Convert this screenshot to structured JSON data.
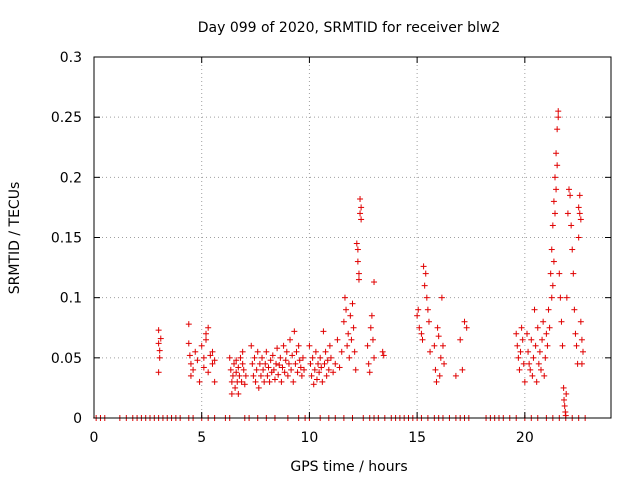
{
  "chart_data": {
    "type": "scatter",
    "title": "Day 099 of 2020, SRMTID for receiver blw2",
    "xlabel": "GPS time / hours",
    "ylabel": "SRMTID / TECUs",
    "xlim": [
      0,
      24
    ],
    "ylim": [
      0,
      0.3
    ],
    "xticks": [
      0,
      5,
      10,
      15,
      20
    ],
    "xtick_labels": [
      "0",
      "5",
      "10",
      "15",
      "20"
    ],
    "yticks": [
      0,
      0.05,
      0.1,
      0.15,
      0.2,
      0.25,
      0.3
    ],
    "ytick_labels": [
      "0",
      "0.05",
      "0.1",
      "0.15",
      "0.2",
      "0.25",
      "0.3"
    ],
    "grid": true,
    "marker": "+",
    "color": "#e00000",
    "zero_points_x": [
      0.1,
      0.3,
      0.5,
      1.2,
      1.5,
      1.8,
      2.0,
      2.2,
      2.4,
      2.6,
      2.8,
      3.0,
      3.2,
      3.4,
      3.6,
      3.8,
      4.0,
      4.4,
      4.6,
      5.0,
      5.3,
      5.6,
      6.1,
      6.3,
      7.0,
      7.2,
      7.6,
      8.0,
      8.4,
      9.0,
      9.5,
      9.8,
      10.0,
      10.5,
      10.9,
      11.2,
      11.6,
      12.0,
      12.5,
      12.8,
      13.0,
      13.2,
      13.5,
      13.8,
      14.0,
      14.2,
      14.4,
      14.6,
      14.8,
      15.0,
      15.2,
      15.5,
      15.8,
      16.0,
      16.2,
      16.5,
      16.8,
      17.0,
      17.2,
      17.4,
      18.2,
      18.4,
      18.6,
      18.8,
      19.0,
      19.3,
      19.6,
      20.0,
      20.3,
      20.6,
      21.0,
      21.3,
      21.6,
      21.9,
      22.2,
      22.5,
      22.8
    ],
    "series": [
      {
        "name": "blw2",
        "points": [
          [
            3.0,
            0.073
          ],
          [
            3.0,
            0.062
          ],
          [
            3.05,
            0.05
          ],
          [
            3.0,
            0.038
          ],
          [
            3.1,
            0.066
          ],
          [
            3.05,
            0.056
          ],
          [
            4.4,
            0.078
          ],
          [
            4.4,
            0.062
          ],
          [
            4.45,
            0.052
          ],
          [
            4.5,
            0.045
          ],
          [
            4.5,
            0.035
          ],
          [
            4.6,
            0.04
          ],
          [
            4.7,
            0.055
          ],
          [
            4.8,
            0.048
          ],
          [
            4.9,
            0.03
          ],
          [
            5.0,
            0.06
          ],
          [
            5.1,
            0.042
          ],
          [
            5.1,
            0.05
          ],
          [
            5.2,
            0.065
          ],
          [
            5.2,
            0.07
          ],
          [
            5.3,
            0.075
          ],
          [
            5.3,
            0.038
          ],
          [
            5.4,
            0.052
          ],
          [
            5.5,
            0.055
          ],
          [
            5.5,
            0.045
          ],
          [
            5.6,
            0.03
          ],
          [
            5.6,
            0.048
          ],
          [
            6.3,
            0.05
          ],
          [
            6.35,
            0.04
          ],
          [
            6.4,
            0.03
          ],
          [
            6.4,
            0.02
          ],
          [
            6.45,
            0.035
          ],
          [
            6.5,
            0.045
          ],
          [
            6.55,
            0.025
          ],
          [
            6.6,
            0.038
          ],
          [
            6.6,
            0.048
          ],
          [
            6.65,
            0.03
          ],
          [
            6.7,
            0.042
          ],
          [
            6.7,
            0.02
          ],
          [
            6.75,
            0.035
          ],
          [
            6.8,
            0.05
          ],
          [
            6.85,
            0.03
          ],
          [
            6.9,
            0.045
          ],
          [
            6.9,
            0.055
          ],
          [
            6.95,
            0.04
          ],
          [
            7.0,
            0.028
          ],
          [
            7.05,
            0.035
          ],
          [
            7.3,
            0.06
          ],
          [
            7.35,
            0.045
          ],
          [
            7.4,
            0.035
          ],
          [
            7.45,
            0.05
          ],
          [
            7.5,
            0.03
          ],
          [
            7.55,
            0.04
          ],
          [
            7.6,
            0.055
          ],
          [
            7.65,
            0.025
          ],
          [
            7.7,
            0.045
          ],
          [
            7.75,
            0.035
          ],
          [
            7.8,
            0.05
          ],
          [
            7.85,
            0.04
          ],
          [
            7.9,
            0.03
          ],
          [
            7.95,
            0.045
          ],
          [
            8.0,
            0.055
          ],
          [
            8.05,
            0.035
          ],
          [
            8.1,
            0.042
          ],
          [
            8.15,
            0.03
          ],
          [
            8.2,
            0.048
          ],
          [
            8.25,
            0.038
          ],
          [
            8.3,
            0.052
          ],
          [
            8.35,
            0.04
          ],
          [
            8.4,
            0.032
          ],
          [
            8.45,
            0.045
          ],
          [
            8.5,
            0.058
          ],
          [
            8.55,
            0.036
          ],
          [
            8.6,
            0.044
          ],
          [
            8.65,
            0.05
          ],
          [
            8.7,
            0.03
          ],
          [
            8.75,
            0.042
          ],
          [
            8.8,
            0.06
          ],
          [
            8.85,
            0.038
          ],
          [
            8.9,
            0.048
          ],
          [
            8.95,
            0.055
          ],
          [
            9.0,
            0.035
          ],
          [
            9.05,
            0.045
          ],
          [
            9.1,
            0.065
          ],
          [
            9.15,
            0.04
          ],
          [
            9.2,
            0.052
          ],
          [
            9.25,
            0.03
          ],
          [
            9.3,
            0.072
          ],
          [
            9.35,
            0.045
          ],
          [
            9.4,
            0.055
          ],
          [
            9.45,
            0.038
          ],
          [
            9.5,
            0.06
          ],
          [
            9.55,
            0.048
          ],
          [
            9.6,
            0.042
          ],
          [
            9.65,
            0.035
          ],
          [
            9.7,
            0.05
          ],
          [
            9.75,
            0.04
          ],
          [
            10.0,
            0.06
          ],
          [
            10.05,
            0.045
          ],
          [
            10.1,
            0.035
          ],
          [
            10.15,
            0.05
          ],
          [
            10.2,
            0.028
          ],
          [
            10.25,
            0.04
          ],
          [
            10.3,
            0.055
          ],
          [
            10.35,
            0.032
          ],
          [
            10.4,
            0.045
          ],
          [
            10.45,
            0.038
          ],
          [
            10.5,
            0.05
          ],
          [
            10.55,
            0.042
          ],
          [
            10.6,
            0.03
          ],
          [
            10.65,
            0.072
          ],
          [
            10.7,
            0.045
          ],
          [
            10.75,
            0.055
          ],
          [
            10.8,
            0.035
          ],
          [
            10.85,
            0.048
          ],
          [
            10.9,
            0.04
          ],
          [
            10.95,
            0.06
          ],
          [
            11.0,
            0.05
          ],
          [
            11.1,
            0.038
          ],
          [
            11.2,
            0.045
          ],
          [
            11.3,
            0.065
          ],
          [
            11.4,
            0.042
          ],
          [
            11.5,
            0.055
          ],
          [
            11.6,
            0.08
          ],
          [
            11.65,
            0.1
          ],
          [
            11.7,
            0.09
          ],
          [
            11.75,
            0.06
          ],
          [
            11.8,
            0.07
          ],
          [
            11.85,
            0.05
          ],
          [
            11.9,
            0.085
          ],
          [
            11.95,
            0.065
          ],
          [
            12.0,
            0.095
          ],
          [
            12.05,
            0.075
          ],
          [
            12.1,
            0.055
          ],
          [
            12.15,
            0.04
          ],
          [
            12.2,
            0.145
          ],
          [
            12.25,
            0.13
          ],
          [
            12.3,
            0.115
          ],
          [
            12.35,
            0.17
          ],
          [
            12.4,
            0.175
          ],
          [
            12.4,
            0.165
          ],
          [
            12.35,
            0.182
          ],
          [
            12.3,
            0.12
          ],
          [
            12.25,
            0.14
          ],
          [
            12.7,
            0.06
          ],
          [
            12.75,
            0.045
          ],
          [
            12.8,
            0.038
          ],
          [
            12.85,
            0.075
          ],
          [
            12.9,
            0.085
          ],
          [
            12.95,
            0.065
          ],
          [
            13.0,
            0.113
          ],
          [
            13.0,
            0.05
          ],
          [
            13.4,
            0.055
          ],
          [
            13.45,
            0.052
          ],
          [
            15.0,
            0.085
          ],
          [
            15.05,
            0.09
          ],
          [
            15.1,
            0.075
          ],
          [
            15.2,
            0.07
          ],
          [
            15.25,
            0.065
          ],
          [
            15.3,
            0.126
          ],
          [
            15.35,
            0.11
          ],
          [
            15.4,
            0.12
          ],
          [
            15.45,
            0.1
          ],
          [
            15.5,
            0.09
          ],
          [
            15.55,
            0.08
          ],
          [
            15.6,
            0.055
          ],
          [
            15.8,
            0.06
          ],
          [
            15.85,
            0.04
          ],
          [
            15.9,
            0.03
          ],
          [
            15.95,
            0.075
          ],
          [
            16.0,
            0.068
          ],
          [
            16.05,
            0.035
          ],
          [
            16.1,
            0.05
          ],
          [
            16.15,
            0.1
          ],
          [
            16.2,
            0.06
          ],
          [
            16.25,
            0.045
          ],
          [
            16.8,
            0.035
          ],
          [
            17.0,
            0.065
          ],
          [
            17.1,
            0.04
          ],
          [
            17.2,
            0.08
          ],
          [
            17.3,
            0.075
          ],
          [
            19.6,
            0.07
          ],
          [
            19.65,
            0.06
          ],
          [
            19.7,
            0.05
          ],
          [
            19.75,
            0.04
          ],
          [
            19.8,
            0.055
          ],
          [
            19.85,
            0.075
          ],
          [
            19.9,
            0.065
          ],
          [
            19.95,
            0.045
          ],
          [
            20.0,
            0.03
          ],
          [
            20.1,
            0.07
          ],
          [
            20.15,
            0.055
          ],
          [
            20.2,
            0.045
          ],
          [
            20.25,
            0.04
          ],
          [
            20.3,
            0.065
          ],
          [
            20.35,
            0.035
          ],
          [
            20.4,
            0.05
          ],
          [
            20.45,
            0.09
          ],
          [
            20.5,
            0.06
          ],
          [
            20.55,
            0.03
          ],
          [
            20.6,
            0.075
          ],
          [
            20.65,
            0.045
          ],
          [
            20.7,
            0.055
          ],
          [
            20.75,
            0.04
          ],
          [
            20.8,
            0.065
          ],
          [
            20.85,
            0.08
          ],
          [
            20.9,
            0.035
          ],
          [
            20.95,
            0.05
          ],
          [
            21.0,
            0.07
          ],
          [
            21.05,
            0.06
          ],
          [
            21.1,
            0.09
          ],
          [
            21.15,
            0.075
          ],
          [
            21.2,
            0.12
          ],
          [
            21.25,
            0.14
          ],
          [
            21.3,
            0.16
          ],
          [
            21.35,
            0.18
          ],
          [
            21.4,
            0.2
          ],
          [
            21.45,
            0.22
          ],
          [
            21.5,
            0.24
          ],
          [
            21.55,
            0.255
          ],
          [
            21.55,
            0.25
          ],
          [
            21.5,
            0.21
          ],
          [
            21.45,
            0.19
          ],
          [
            21.4,
            0.17
          ],
          [
            21.35,
            0.13
          ],
          [
            21.3,
            0.11
          ],
          [
            21.25,
            0.1
          ],
          [
            21.6,
            0.12
          ],
          [
            21.65,
            0.1
          ],
          [
            21.7,
            0.08
          ],
          [
            21.75,
            0.06
          ],
          [
            21.8,
            0.025
          ],
          [
            21.82,
            0.015
          ],
          [
            21.85,
            0.01
          ],
          [
            21.88,
            0.005
          ],
          [
            21.9,
            0.002
          ],
          [
            21.92,
            0.02
          ],
          [
            21.95,
            0.1
          ],
          [
            22.0,
            0.17
          ],
          [
            22.05,
            0.19
          ],
          [
            22.1,
            0.185
          ],
          [
            22.15,
            0.16
          ],
          [
            22.2,
            0.14
          ],
          [
            22.25,
            0.12
          ],
          [
            22.3,
            0.09
          ],
          [
            22.35,
            0.07
          ],
          [
            22.4,
            0.06
          ],
          [
            22.45,
            0.045
          ],
          [
            22.5,
            0.175
          ],
          [
            22.55,
            0.17
          ],
          [
            22.6,
            0.165
          ],
          [
            22.55,
            0.185
          ],
          [
            22.5,
            0.15
          ],
          [
            22.6,
            0.08
          ],
          [
            22.65,
            0.065
          ],
          [
            22.7,
            0.055
          ],
          [
            22.65,
            0.045
          ]
        ]
      }
    ]
  }
}
